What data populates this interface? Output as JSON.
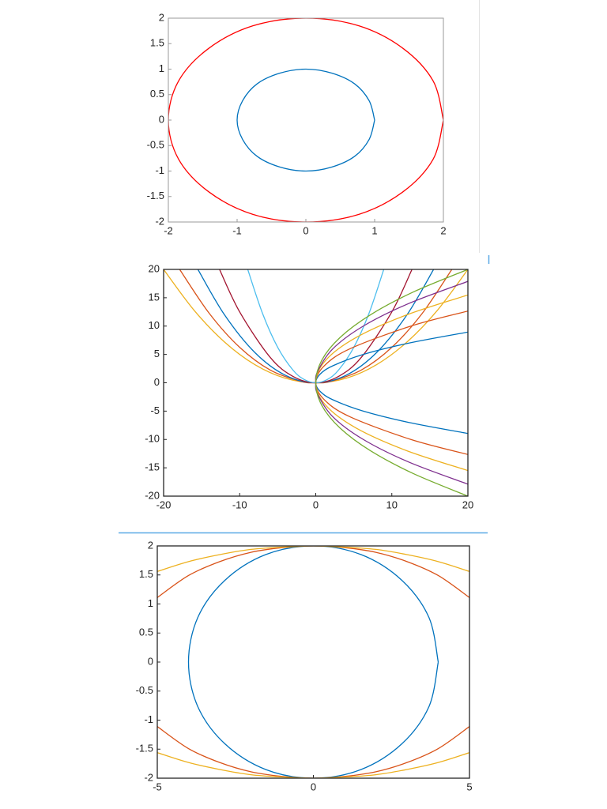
{
  "chart_data": [
    {
      "type": "line",
      "xlim": [
        -2,
        2
      ],
      "xticks": [
        -2,
        -1,
        0,
        1,
        2
      ],
      "ylim": [
        -2,
        2
      ],
      "yticks": [
        -2,
        -1.5,
        -1,
        -0.5,
        0,
        0.5,
        1,
        1.5,
        2
      ],
      "grid": false,
      "series": [
        {
          "color": "#0072bd",
          "x": [
            1,
            0.92,
            0.71,
            0.38,
            0,
            -0.38,
            -0.71,
            -0.92,
            -1,
            -0.92,
            -0.71,
            -0.38,
            0,
            0.38,
            0.71,
            0.92,
            1
          ],
          "values": [
            0,
            0.38,
            0.71,
            0.92,
            1,
            0.92,
            0.71,
            0.38,
            0,
            -0.38,
            -0.71,
            -0.92,
            -1,
            -0.92,
            -0.71,
            -0.38,
            0
          ]
        },
        {
          "color": "#ff0000",
          "x": [
            2,
            1.85,
            1.41,
            0.77,
            0,
            -0.77,
            -1.41,
            -1.85,
            -2,
            -1.85,
            -1.41,
            -0.77,
            0,
            0.77,
            1.41,
            1.85,
            2
          ],
          "values": [
            0,
            0.77,
            1.41,
            1.85,
            2,
            1.85,
            1.41,
            0.77,
            0,
            -0.77,
            -1.41,
            -1.85,
            -2,
            -1.85,
            -1.41,
            -0.77,
            0
          ]
        }
      ]
    },
    {
      "type": "line",
      "xlim": [
        -20,
        20
      ],
      "xticks": [
        -20,
        -10,
        0,
        10,
        20
      ],
      "ylim": [
        -20,
        20
      ],
      "yticks": [
        -20,
        -15,
        -10,
        -5,
        0,
        5,
        10,
        15,
        20
      ],
      "grid": false,
      "series": [
        {
          "color": "#edb120",
          "x": [
            -20,
            -16,
            -12,
            -8,
            -4,
            0,
            4,
            8,
            12,
            16,
            20
          ],
          "values": [
            20,
            12.8,
            7.2,
            3.2,
            0.8,
            0,
            0.8,
            3.2,
            7.2,
            12.8,
            20
          ]
        },
        {
          "color": "#d95319",
          "x": [
            -17.89,
            -14,
            -10,
            -6,
            -2,
            0,
            2,
            6,
            10,
            14,
            17.89
          ],
          "values": [
            20,
            12.25,
            6.25,
            2.25,
            0.25,
            0,
            0.25,
            2.25,
            6.25,
            12.25,
            20
          ]
        },
        {
          "color": "#0072bd",
          "x": [
            -15.49,
            -12,
            -8,
            -4,
            0,
            4,
            8,
            12,
            15.49
          ],
          "values": [
            20,
            12,
            5.33,
            1.33,
            0,
            1.33,
            5.33,
            12,
            20
          ]
        },
        {
          "color": "#a2142f",
          "x": [
            -12.65,
            -10,
            -6,
            -3,
            0,
            3,
            6,
            10,
            12.65
          ],
          "values": [
            20,
            12.5,
            4.5,
            1.13,
            0,
            1.13,
            4.5,
            12.5,
            20
          ]
        },
        {
          "color": "#4dbeee",
          "x": [
            -8.94,
            -7,
            -5,
            -3,
            -1.5,
            0,
            1.5,
            3,
            5,
            7,
            8.94
          ],
          "values": [
            20,
            12.25,
            6.25,
            2.25,
            0.56,
            0,
            0.56,
            2.25,
            6.25,
            12.25,
            20
          ]
        },
        {
          "color": "#0072bd",
          "x": [
            20,
            12.25,
            6.25,
            2.25,
            0.56,
            0,
            0.56,
            2.25,
            6.25,
            12.25,
            20
          ],
          "values": [
            -8.94,
            -7,
            -5,
            -3,
            -1.5,
            0,
            1.5,
            3,
            5,
            7,
            8.94
          ]
        },
        {
          "color": "#d95319",
          "x": [
            20,
            12.5,
            4.5,
            1.13,
            0,
            1.13,
            4.5,
            12.5,
            20
          ],
          "values": [
            -12.65,
            -10,
            -6,
            -3,
            0,
            3,
            6,
            10,
            12.65
          ]
        },
        {
          "color": "#edb120",
          "x": [
            20,
            12,
            5.33,
            1.33,
            0,
            1.33,
            5.33,
            12,
            20
          ],
          "values": [
            -15.49,
            -12,
            -8,
            -4,
            0,
            4,
            8,
            12,
            15.49
          ]
        },
        {
          "color": "#7e2f8e",
          "x": [
            20,
            12.25,
            6.25,
            2.25,
            0.25,
            0,
            0.25,
            2.25,
            6.25,
            12.25,
            20
          ],
          "values": [
            -17.89,
            -14,
            -10,
            -6,
            -2,
            0,
            2,
            6,
            10,
            14,
            17.89
          ]
        },
        {
          "color": "#77ac30",
          "x": [
            20,
            12.8,
            7.2,
            3.2,
            0.8,
            0,
            0.8,
            3.2,
            7.2,
            12.8,
            20
          ],
          "values": [
            -20,
            -16,
            -12,
            -8,
            -4,
            0,
            4,
            8,
            12,
            16,
            20
          ]
        }
      ]
    },
    {
      "type": "line",
      "xlim": [
        -5,
        5
      ],
      "xticks": [
        -5,
        0,
        5
      ],
      "ylim": [
        -2,
        2
      ],
      "yticks": [
        -2,
        -1.5,
        -1,
        -0.5,
        0,
        0.5,
        1,
        1.5,
        2
      ],
      "grid": false,
      "series": [
        {
          "color": "#0072bd",
          "x": [
            4,
            3.7,
            2.83,
            1.53,
            0,
            -1.53,
            -2.83,
            -3.7,
            -4,
            -3.7,
            -2.83,
            -1.53,
            0,
            1.53,
            2.83,
            3.7,
            4
          ],
          "values": [
            0,
            0.77,
            1.41,
            1.85,
            2,
            1.85,
            1.41,
            0.77,
            0,
            -0.77,
            -1.41,
            -1.85,
            -2,
            -1.85,
            -1.41,
            -0.77,
            0
          ]
        },
        {
          "color": "#d95319",
          "x": [
            -5,
            -4,
            -3,
            -2,
            -1,
            0,
            1,
            2,
            3,
            4,
            5
          ],
          "values": [
            1.11,
            1.49,
            1.73,
            1.89,
            1.97,
            2,
            1.97,
            1.89,
            1.73,
            1.49,
            1.11
          ]
        },
        {
          "color": "#d95319",
          "x": [
            -5,
            -4,
            -3,
            -2,
            -1,
            0,
            1,
            2,
            3,
            4,
            5
          ],
          "values": [
            -1.11,
            -1.49,
            -1.73,
            -1.89,
            -1.97,
            -2,
            -1.97,
            -1.89,
            -1.73,
            -1.49,
            -1.11
          ]
        },
        {
          "color": "#edb120",
          "x": [
            -5,
            -4,
            -3,
            -2,
            -1,
            0,
            1,
            2,
            3,
            4,
            5
          ],
          "values": [
            1.56,
            1.73,
            1.85,
            1.94,
            1.98,
            2,
            1.98,
            1.94,
            1.85,
            1.73,
            1.56
          ]
        },
        {
          "color": "#edb120",
          "x": [
            -5,
            -4,
            -3,
            -2,
            -1,
            0,
            1,
            2,
            3,
            4,
            5
          ],
          "values": [
            -1.56,
            -1.73,
            -1.85,
            -1.94,
            -1.98,
            -2,
            -1.98,
            -1.94,
            -1.85,
            -1.73,
            -1.56
          ]
        }
      ]
    }
  ]
}
